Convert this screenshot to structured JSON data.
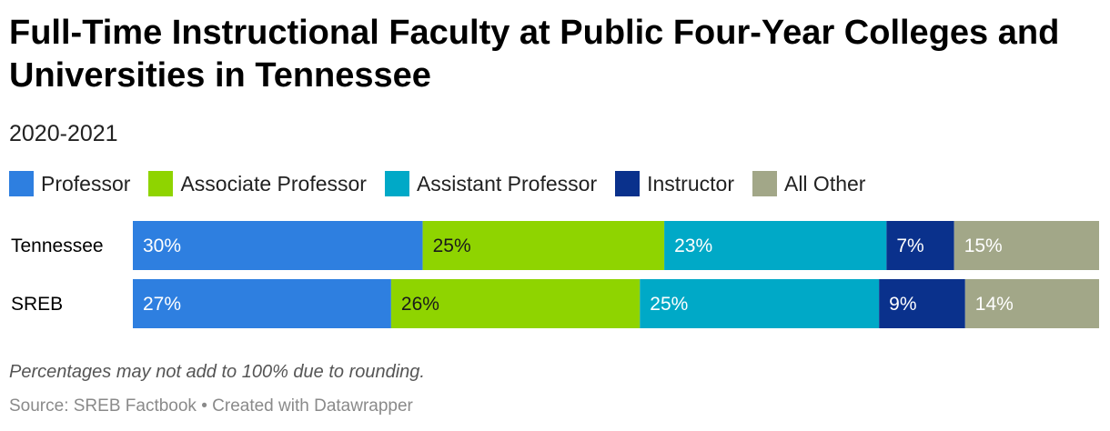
{
  "title": "Full-Time Instructional Faculty at Public Four-Year Colleges and Universities in Tennessee",
  "subtitle": "2020-2021",
  "note": "Percentages may not add to 100% due to rounding.",
  "footer": {
    "source": "Source: SREB Factbook",
    "separator": " • ",
    "credit": "Created with Datawrapper"
  },
  "chart_data": {
    "type": "bar",
    "orientation": "horizontal",
    "stacked": true,
    "unit": "%",
    "xlim": [
      0,
      100
    ],
    "categories": [
      "Tennessee",
      "SREB"
    ],
    "series": [
      {
        "name": "Professor",
        "color": "#2e7fe0",
        "label_color": "#ffffff",
        "values": [
          30,
          27
        ]
      },
      {
        "name": "Associate Professor",
        "color": "#8fd400",
        "label_color": "#1a1a1a",
        "values": [
          25,
          26
        ]
      },
      {
        "name": "Assistant Professor",
        "color": "#00a9c7",
        "label_color": "#ffffff",
        "values": [
          23,
          25
        ]
      },
      {
        "name": "Instructor",
        "color": "#0a318c",
        "label_color": "#ffffff",
        "values": [
          7,
          9
        ]
      },
      {
        "name": "All Other",
        "color": "#a2a788",
        "label_color": "#ffffff",
        "values": [
          15,
          14
        ]
      }
    ],
    "legend": "top-left",
    "grid": false
  }
}
